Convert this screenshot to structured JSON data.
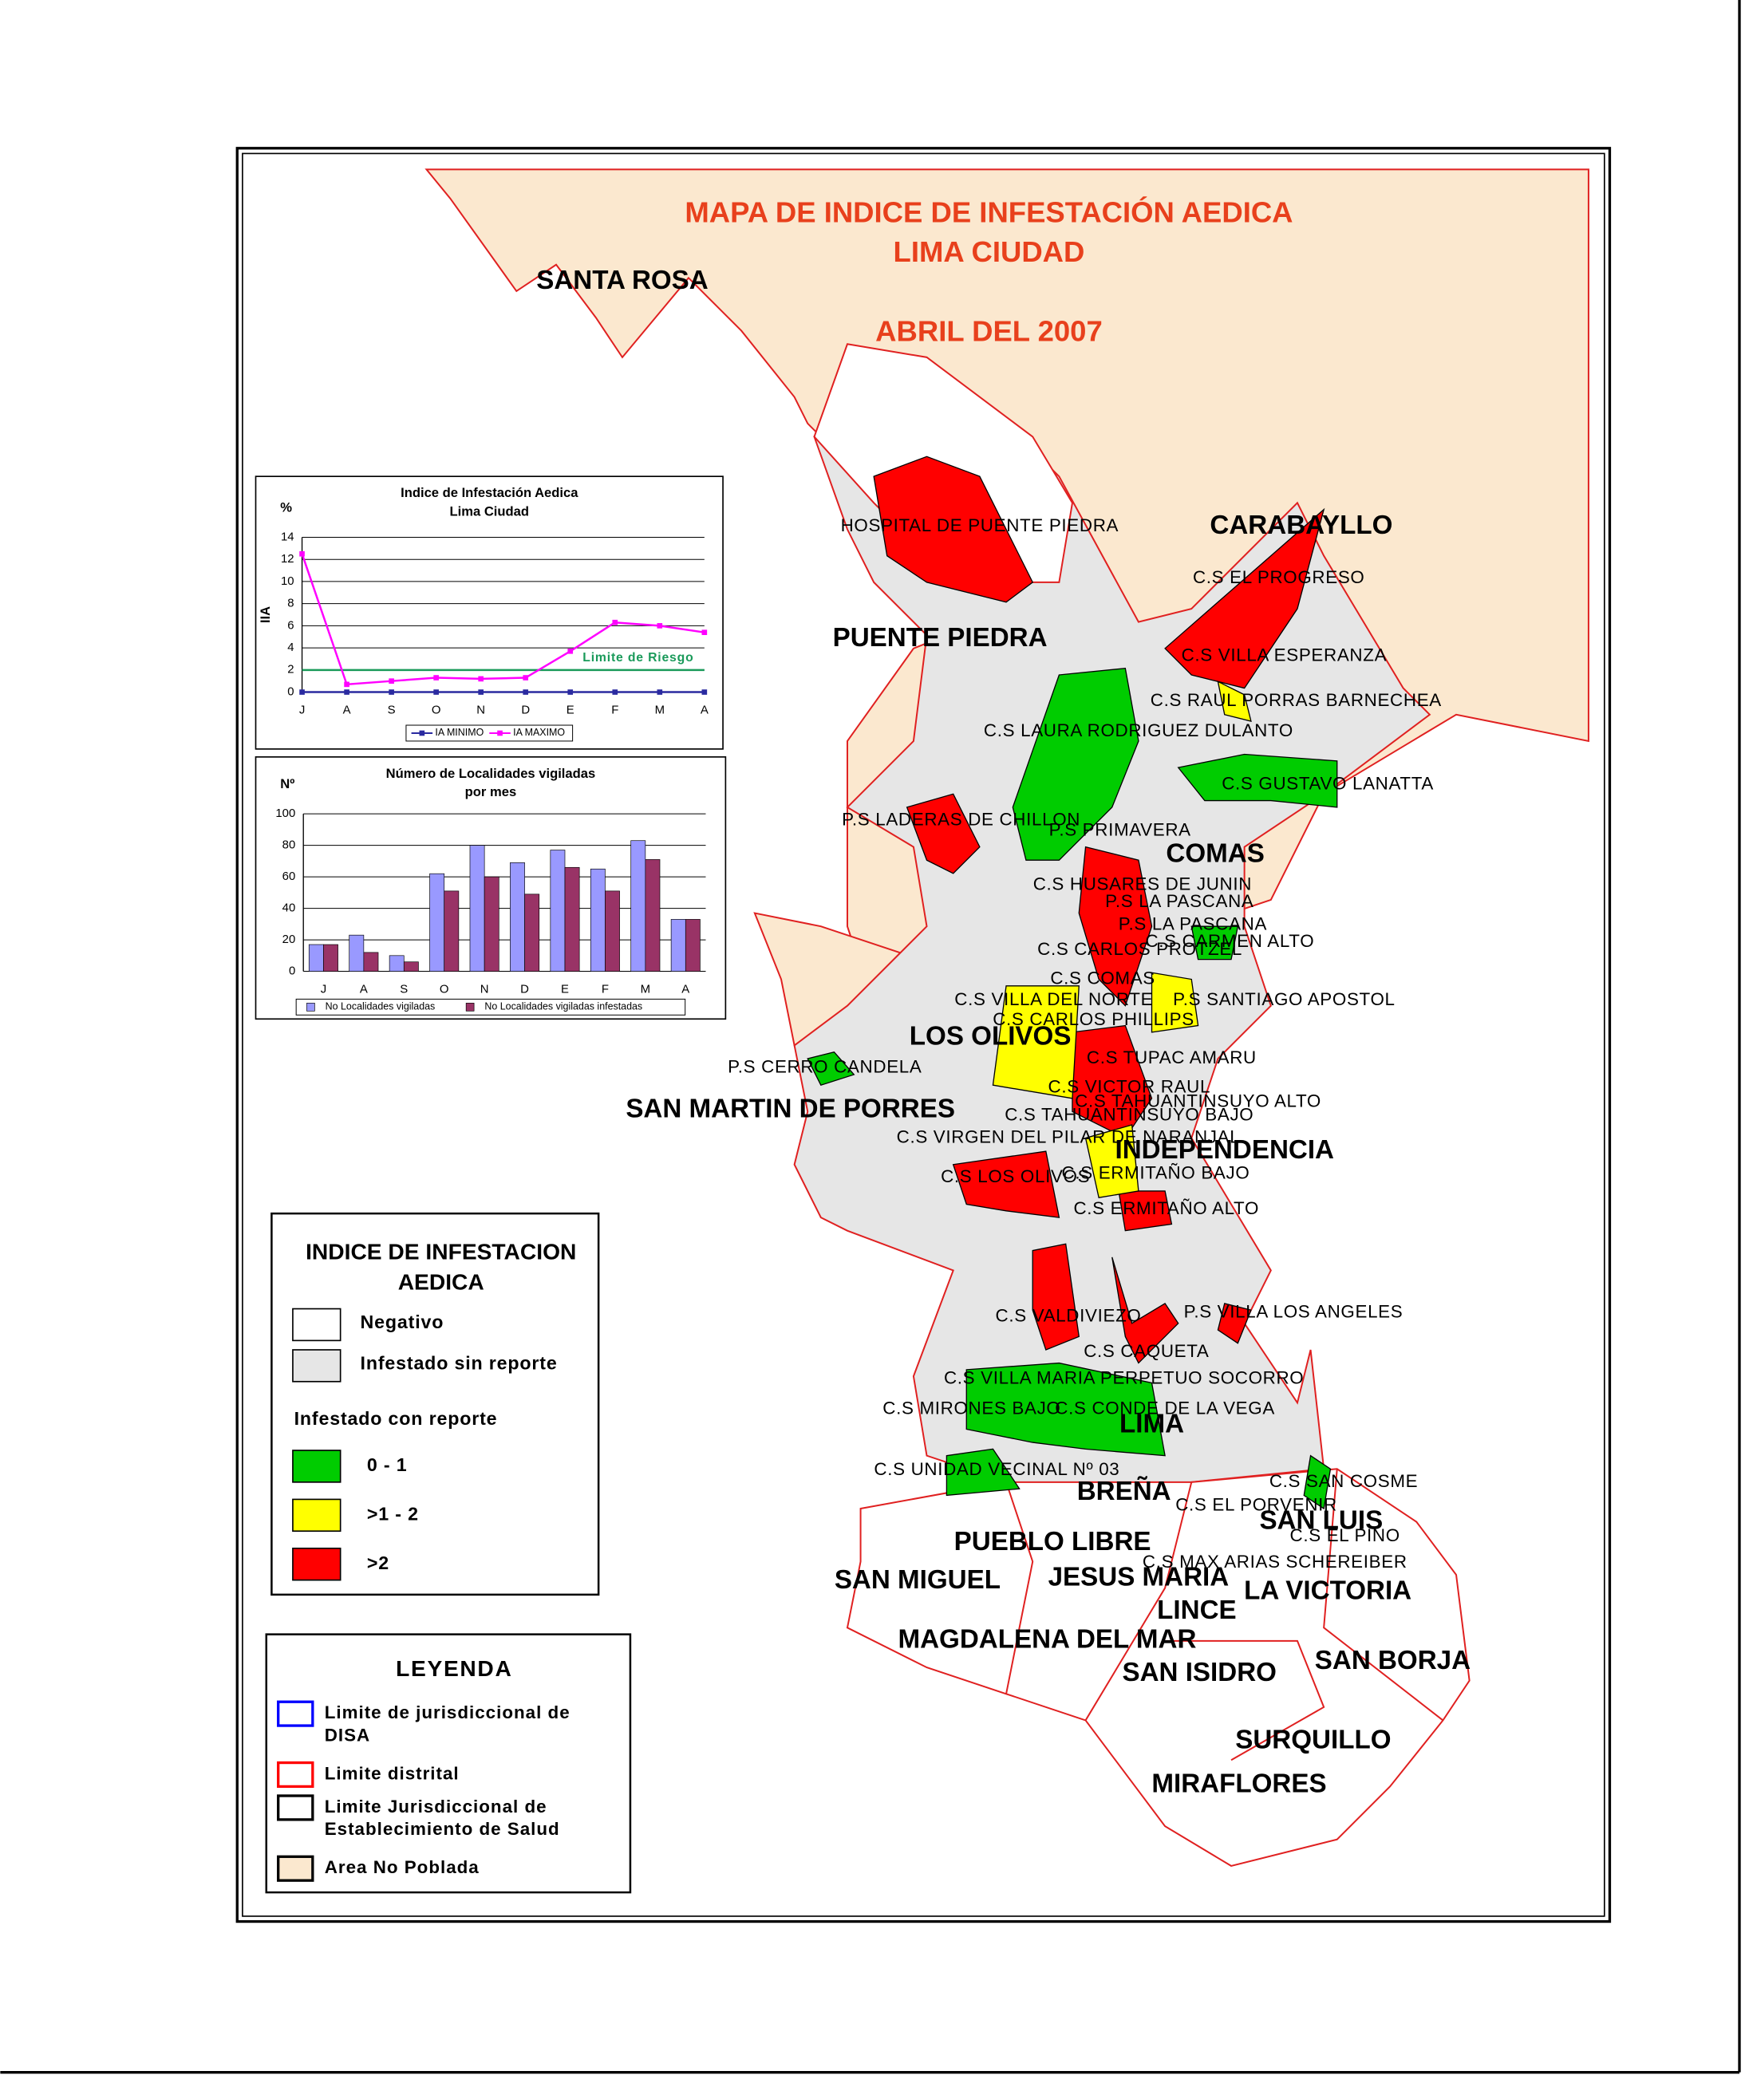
{
  "map": {
    "title": [
      "MAPA DE INDICE DE INFESTACIÓN AEDICA",
      "LIMA CIUDAD",
      "ABRIL DEL 2007"
    ],
    "districts": [
      "SANTA ROSA",
      "PUENTE PIEDRA",
      "CARABAYLLO",
      "COMAS",
      "LOS OLIVOS",
      "SAN MARTIN DE PORRES",
      "INDEPENDENCIA",
      "LIMA",
      "BREÑA",
      "PUEBLO LIBRE",
      "SAN MIGUEL",
      "JESUS MARIA",
      "LINCE",
      "LA VICTORIA",
      "SAN LUIS",
      "MAGDALENA DEL MAR",
      "SAN ISIDRO",
      "SAN BORJA",
      "SURQUILLO",
      "MIRAFLORES"
    ],
    "facilities": [
      "HOSPITAL DE PUENTE PIEDRA",
      "C.S EL PROGRESO",
      "C.S VILLA ESPERANZA",
      "C.S RAUL PORRAS BARNECHEA",
      "C.S LAURA RODRIGUEZ DULANTO",
      "C.S GUSTAVO LANATTA",
      "P.S LADERAS DE CHILLON",
      "P.S PRIMAVERA",
      "C.S HUSARES DE JUNIN",
      "P.S LA PASCANA",
      "P.S LA PASCANA",
      "C.S CARMEN ALTO",
      "C.S CARLOS PROTZEL",
      "C.S COMAS",
      "C.S VILLA DEL NORTE",
      "P.S SANTIAGO APOSTOL",
      "C.S CARLOS PHILLIPS",
      "C.S TUPAC AMARU",
      "P.S CERRO CANDELA",
      "C.S VICTOR RAUL",
      "C.S TAHUANTINSUYO ALTO",
      "C.S TAHUANTINSUYO BAJO",
      "C.S VIRGEN DEL PILAR DE NARANJAL",
      "C.S ERMITAÑO BAJO",
      "C.S LOS OLIVOS",
      "C.S ERMITAÑO ALTO",
      "C.S VALDIVIEZO",
      "P.S VILLA LOS ANGELES",
      "C.S CAQUETA",
      "C.S VILLA MARIA PERPETUO SOCORRO",
      "C.S MIRONES BAJO",
      "C.S CONDE DE LA VEGA",
      "C.S UNIDAD VECINAL Nº 03",
      "C.S SAN COSME",
      "C.S EL PORVENIR",
      "C.S EL PINO",
      "C.S MAX ARIAS SCHEREIBER"
    ]
  },
  "legend_index": {
    "title": [
      "INDICE DE INFESTACION",
      "AEDICA"
    ],
    "items": [
      {
        "label": "Negativo",
        "color": "#ffffff"
      },
      {
        "label": "Infestado sin reporte",
        "color": "#e6e6e6"
      }
    ],
    "subheading": "Infestado con reporte",
    "report_items": [
      {
        "label": "0 - 1",
        "color": "#00cc00"
      },
      {
        "label": ">1 - 2",
        "color": "#ffff00"
      },
      {
        "label": ">2",
        "color": "#ff0000"
      }
    ]
  },
  "legend_lines": {
    "title": "LEYENDA",
    "items": [
      {
        "label": [
          "Limite de jurisdiccional de",
          "DISA"
        ],
        "stroke": "#0000ff",
        "fill": "#ffffff"
      },
      {
        "label": [
          "Limite distrital"
        ],
        "stroke": "#ff0000",
        "fill": "#ffffff"
      },
      {
        "label": [
          "Limite Jurisdiccional de",
          "Establecimiento de Salud"
        ],
        "stroke": "#000000",
        "fill": "#ffffff"
      },
      {
        "label": [
          "Area No Poblada"
        ],
        "stroke": "#000000",
        "fill": "#fbe8cf"
      }
    ]
  },
  "chart_data": [
    {
      "type": "line",
      "title": [
        "Indice de Infestación Aedica",
        "Lima Ciudad"
      ],
      "unit": "%",
      "ylabel": "IIA",
      "categories": [
        "J",
        "A",
        "S",
        "O",
        "N",
        "D",
        "E",
        "F",
        "M",
        "A"
      ],
      "series": [
        {
          "name": "IA MINIMO",
          "color": "#2a2aa0",
          "values": [
            0,
            0,
            0,
            0,
            0,
            0,
            0,
            0,
            0,
            0
          ]
        },
        {
          "name": "IA MAXIMO",
          "color": "#ff00ff",
          "values": [
            12.5,
            0.7,
            1.0,
            1.3,
            1.2,
            1.3,
            3.7,
            6.3,
            6.0,
            5.4
          ]
        }
      ],
      "reference_line": {
        "label": "Limite de Riesgo",
        "value": 2,
        "color": "#1a9a5a"
      },
      "ylim": [
        0,
        14
      ],
      "yticks": [
        0,
        2,
        4,
        6,
        8,
        10,
        12,
        14
      ],
      "grid": true
    },
    {
      "type": "bar",
      "title": [
        "Número de Localidades vigiladas",
        "por mes"
      ],
      "unit": "Nº",
      "categories": [
        "J",
        "A",
        "S",
        "O",
        "N",
        "D",
        "E",
        "F",
        "M",
        "A"
      ],
      "series": [
        {
          "name": "No Localidades vigiladas",
          "color": "#9999ff",
          "values": [
            17,
            23,
            10,
            62,
            80,
            69,
            77,
            65,
            83,
            33
          ]
        },
        {
          "name": "No Localidades vigiladas infestadas",
          "color": "#993366",
          "values": [
            17,
            12,
            6,
            51,
            60,
            49,
            66,
            51,
            71,
            33
          ]
        }
      ],
      "ylim": [
        0,
        100
      ],
      "yticks": [
        0,
        20,
        40,
        60,
        80,
        100
      ],
      "grid": true
    }
  ]
}
